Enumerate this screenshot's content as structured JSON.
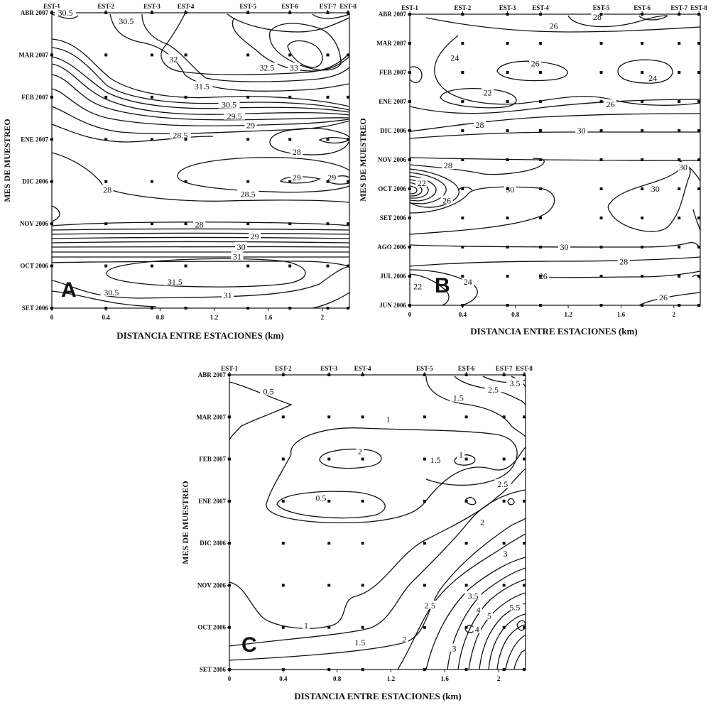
{
  "chart_data": [
    {
      "type": "contour",
      "panel_label": "A",
      "xlabel": "DISTANCIA ENTRE ESTACIONES (km)",
      "ylabel": "MES DE MUESTREO",
      "x_ticks": [
        "0",
        "0.4",
        "0.8",
        "1.2",
        "1.6",
        "2"
      ],
      "xlim": [
        0,
        2.2
      ],
      "months": [
        "SET 2006",
        "OCT 2006",
        "NOV 2006",
        "DIC 2006",
        "ENE 2007",
        "FEB 2007",
        "MAR 2007",
        "ABR 2007"
      ],
      "stations": [
        {
          "name": "EST-1",
          "x": 0
        },
        {
          "name": "EST-2",
          "x": 0.4
        },
        {
          "name": "EST-3",
          "x": 0.74
        },
        {
          "name": "EST-4",
          "x": 0.99
        },
        {
          "name": "EST-5",
          "x": 1.45
        },
        {
          "name": "EST-6",
          "x": 1.76
        },
        {
          "name": "EST-7",
          "x": 2.04
        },
        {
          "name": "EST-8",
          "x": 2.19
        }
      ],
      "contour_labels": [
        {
          "text": "30.5",
          "x": 0.1,
          "m": 7.0
        },
        {
          "text": "30.5",
          "x": 0.55,
          "m": 6.8
        },
        {
          "text": "32",
          "x": 0.9,
          "m": 5.9
        },
        {
          "text": "32.5",
          "x": 1.59,
          "m": 5.7
        },
        {
          "text": "33",
          "x": 1.79,
          "m": 5.7
        },
        {
          "text": "31.5",
          "x": 1.11,
          "m": 5.26
        },
        {
          "text": "30.5",
          "x": 1.31,
          "m": 4.82
        },
        {
          "text": "29.5",
          "x": 1.35,
          "m": 4.55
        },
        {
          "text": "29",
          "x": 1.47,
          "m": 4.33
        },
        {
          "text": "28.5",
          "x": 0.95,
          "m": 4.1
        },
        {
          "text": "28",
          "x": 1.81,
          "m": 3.7
        },
        {
          "text": "29",
          "x": 1.81,
          "m": 3.1
        },
        {
          "text": "29",
          "x": 2.07,
          "m": 3.1
        },
        {
          "text": "28",
          "x": 0.41,
          "m": 2.8
        },
        {
          "text": "28.5",
          "x": 1.45,
          "m": 2.7
        },
        {
          "text": "28",
          "x": 1.09,
          "m": 1.98
        },
        {
          "text": "29",
          "x": 1.5,
          "m": 1.7
        },
        {
          "text": "30",
          "x": 1.4,
          "m": 1.45
        },
        {
          "text": "31",
          "x": 1.37,
          "m": 1.22
        },
        {
          "text": "31.5",
          "x": 0.91,
          "m": 0.62
        },
        {
          "text": "30.5",
          "x": 0.44,
          "m": 0.37
        },
        {
          "text": "31",
          "x": 1.3,
          "m": 0.3
        }
      ]
    },
    {
      "type": "contour",
      "panel_label": "B",
      "xlabel": "DISTANCIA ENTRE ESTACIONES (km)",
      "ylabel": "MES DE MUESTREO",
      "x_ticks": [
        "0",
        "0.4",
        "0.8",
        "1.2",
        "1.6",
        "2"
      ],
      "xlim": [
        0,
        2.2
      ],
      "months": [
        "JUN 2006",
        "JUL 2006",
        "AGO 2006",
        "SET 2006",
        "OCT 2006",
        "NOV 2006",
        "DIC 2006",
        "ENE 2007",
        "FEB 2007",
        "MAR 2007",
        "ABR 2007"
      ],
      "stations": [
        {
          "name": "EST-1",
          "x": 0
        },
        {
          "name": "EST-2",
          "x": 0.4
        },
        {
          "name": "EST-3",
          "x": 0.74
        },
        {
          "name": "EST-4",
          "x": 0.99
        },
        {
          "name": "EST-5",
          "x": 1.45
        },
        {
          "name": "EST-6",
          "x": 1.76
        },
        {
          "name": "EST-7",
          "x": 2.04
        },
        {
          "name": "EST-8",
          "x": 2.19
        }
      ],
      "contour_labels": [
        {
          "text": "28",
          "x": 1.42,
          "m": 9.9
        },
        {
          "text": "26",
          "x": 1.09,
          "m": 9.6
        },
        {
          "text": "24",
          "x": 0.34,
          "m": 8.5
        },
        {
          "text": "26",
          "x": 0.95,
          "m": 8.3
        },
        {
          "text": "24",
          "x": 1.84,
          "m": 7.8
        },
        {
          "text": "22",
          "x": 0.59,
          "m": 7.3
        },
        {
          "text": "26",
          "x": 1.52,
          "m": 6.9
        },
        {
          "text": "28",
          "x": 0.53,
          "m": 6.2
        },
        {
          "text": "30",
          "x": 1.3,
          "m": 6.0
        },
        {
          "text": "28",
          "x": 0.29,
          "m": 4.8
        },
        {
          "text": "22",
          "x": 0.09,
          "m": 4.2
        },
        {
          "text": "26",
          "x": 0.28,
          "m": 3.6
        },
        {
          "text": "30",
          "x": 0.76,
          "m": 3.97
        },
        {
          "text": "30",
          "x": 1.86,
          "m": 4.0
        },
        {
          "text": "30",
          "x": 2.07,
          "m": 4.75
        },
        {
          "text": "30",
          "x": 1.17,
          "m": 2.0
        },
        {
          "text": "28",
          "x": 1.62,
          "m": 1.5
        },
        {
          "text": "26",
          "x": 1.01,
          "m": 1.0
        },
        {
          "text": "22",
          "x": 0.06,
          "m": 0.65
        },
        {
          "text": "24",
          "x": 0.44,
          "m": 0.8
        },
        {
          "text": "26",
          "x": 1.92,
          "m": 0.27
        }
      ]
    },
    {
      "type": "contour",
      "panel_label": "C",
      "xlabel": "DISTANCIA ENTRE ESTACIONES (km)",
      "ylabel": "MES DE MUESTREO",
      "x_ticks": [
        "0",
        "0.4",
        "0.8",
        "1.2",
        "1.6",
        "2"
      ],
      "xlim": [
        0,
        2.2
      ],
      "months": [
        "SET 2006",
        "OCT 2006",
        "NOV 2006",
        "DIC 2006",
        "ENE 2007",
        "FEB 2007",
        "MAR 2007",
        "ABR 2007"
      ],
      "stations": [
        {
          "name": "EST-1",
          "x": 0
        },
        {
          "name": "EST-2",
          "x": 0.4
        },
        {
          "name": "EST-3",
          "x": 0.74
        },
        {
          "name": "EST-4",
          "x": 0.99
        },
        {
          "name": "EST-5",
          "x": 1.45
        },
        {
          "name": "EST-6",
          "x": 1.76
        },
        {
          "name": "EST-7",
          "x": 2.04
        },
        {
          "name": "EST-8",
          "x": 2.19
        }
      ],
      "contour_labels": [
        {
          "text": "0.5",
          "x": 0.29,
          "m": 6.6
        },
        {
          "text": "3.5",
          "x": 2.12,
          "m": 6.8
        },
        {
          "text": "2.5",
          "x": 1.96,
          "m": 6.65
        },
        {
          "text": "1.5",
          "x": 1.7,
          "m": 6.45
        },
        {
          "text": "1",
          "x": 1.18,
          "m": 5.95
        },
        {
          "text": "2",
          "x": 0.97,
          "m": 5.18
        },
        {
          "text": "1.5",
          "x": 1.53,
          "m": 4.98
        },
        {
          "text": "1",
          "x": 1.72,
          "m": 5.1
        },
        {
          "text": "2.5",
          "x": 2.03,
          "m": 4.4
        },
        {
          "text": "0.5",
          "x": 0.68,
          "m": 4.07
        },
        {
          "text": "2",
          "x": 1.88,
          "m": 3.5
        },
        {
          "text": "3",
          "x": 2.05,
          "m": 2.75
        },
        {
          "text": "3.5",
          "x": 1.81,
          "m": 1.75
        },
        {
          "text": "4",
          "x": 1.85,
          "m": 1.42
        },
        {
          "text": "5",
          "x": 1.93,
          "m": 1.27
        },
        {
          "text": "5.5",
          "x": 2.12,
          "m": 1.48
        },
        {
          "text": "2.5",
          "x": 1.49,
          "m": 1.52
        },
        {
          "text": "1",
          "x": 0.57,
          "m": 1.05
        },
        {
          "text": "2",
          "x": 1.3,
          "m": 0.72
        },
        {
          "text": "1.5",
          "x": 0.97,
          "m": 0.64
        },
        {
          "text": "3",
          "x": 1.67,
          "m": 0.5
        },
        {
          "text": "4",
          "x": 1.84,
          "m": 0.95
        }
      ]
    }
  ]
}
